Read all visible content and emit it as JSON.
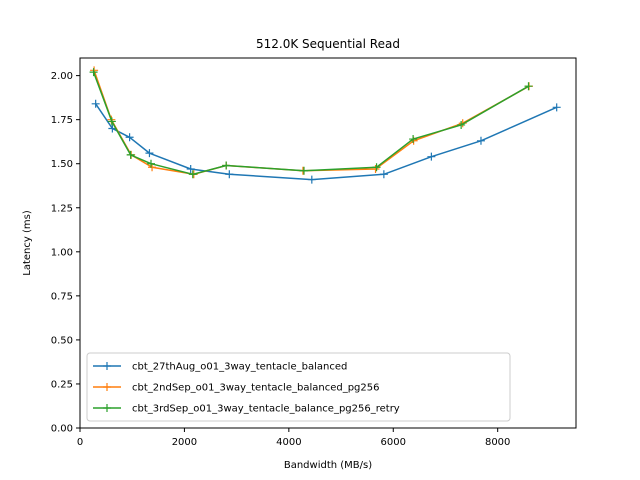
{
  "chart_data": {
    "type": "line",
    "title": "512.0K  Sequential Read",
    "xlabel": "Bandwidth (MB/s)",
    "ylabel": "Latency (ms)",
    "xlim": [
      0,
      9500
    ],
    "ylim": [
      0.0,
      2.1
    ],
    "xticks": [
      0,
      2000,
      4000,
      6000,
      8000
    ],
    "yticks": [
      0.0,
      0.25,
      0.5,
      0.75,
      1.0,
      1.25,
      1.5,
      1.75,
      2.0
    ],
    "xtick_labels": [
      "0",
      "2000",
      "4000",
      "6000",
      "8000"
    ],
    "ytick_labels": [
      "0.00",
      "0.25",
      "0.50",
      "0.75",
      "1.00",
      "1.25",
      "1.50",
      "1.75",
      "2.00"
    ],
    "grid": false,
    "marker": "plus",
    "legend_position": "lower-left",
    "series": [
      {
        "name": "cbt_27thAug_o01_3way_tentacle_balanced",
        "color": "#1f77b4",
        "x": [
          300,
          620,
          950,
          1330,
          2120,
          2860,
          4440,
          5820,
          6730,
          7680,
          9130
        ],
        "y": [
          1.84,
          1.7,
          1.65,
          1.56,
          1.47,
          1.44,
          1.41,
          1.44,
          1.54,
          1.63,
          1.82
        ]
      },
      {
        "name": "cbt_2ndSep_o01_3way_tentacle_balanced_pg256",
        "color": "#ff7f0e",
        "x": [
          270,
          600,
          980,
          1380,
          2180,
          2800,
          4270,
          5660,
          6390,
          7330,
          8600
        ],
        "y": [
          2.03,
          1.75,
          1.55,
          1.48,
          1.44,
          1.49,
          1.46,
          1.47,
          1.63,
          1.73,
          1.94
        ]
      },
      {
        "name": "cbt_3rdSep_o01_3way_tentacle_balance_pg256_retry",
        "color": "#2ca02c",
        "x": [
          260,
          610,
          970,
          1360,
          2160,
          2800,
          4290,
          5680,
          6380,
          7300,
          8590
        ],
        "y": [
          2.02,
          1.74,
          1.55,
          1.5,
          1.44,
          1.49,
          1.46,
          1.48,
          1.64,
          1.72,
          1.94
        ]
      }
    ]
  }
}
